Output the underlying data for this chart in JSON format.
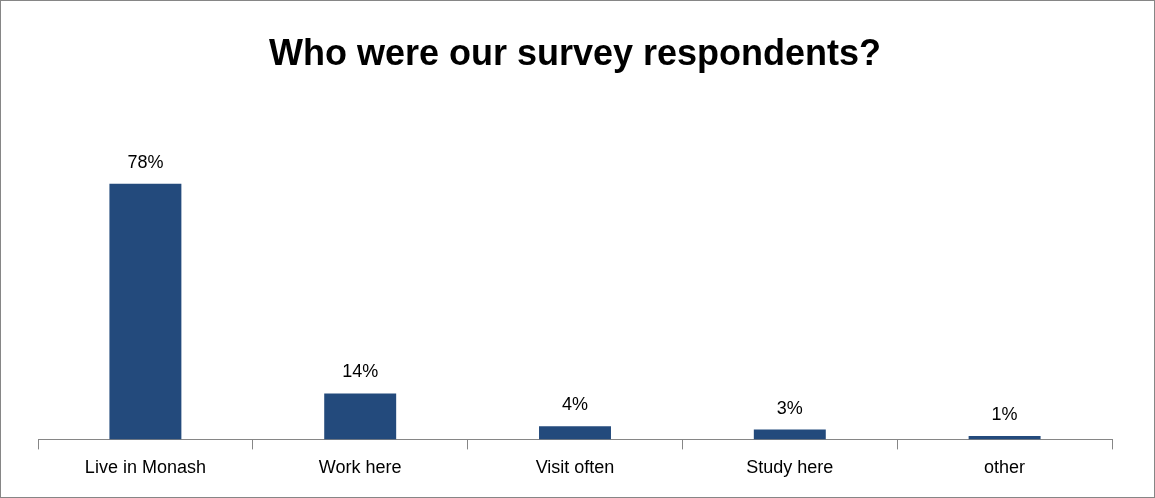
{
  "chart_data": {
    "type": "bar",
    "title": "Who were our survey respondents?",
    "categories": [
      "Live in Monash",
      "Work here",
      "Visit often",
      "Study here",
      "other"
    ],
    "values": [
      78,
      14,
      4,
      3,
      1
    ],
    "value_labels": [
      "78%",
      "14%",
      "4%",
      "3%",
      "1%"
    ],
    "color": "#234a7c",
    "tick_labels": "x",
    "grid": false,
    "legend": false
  }
}
